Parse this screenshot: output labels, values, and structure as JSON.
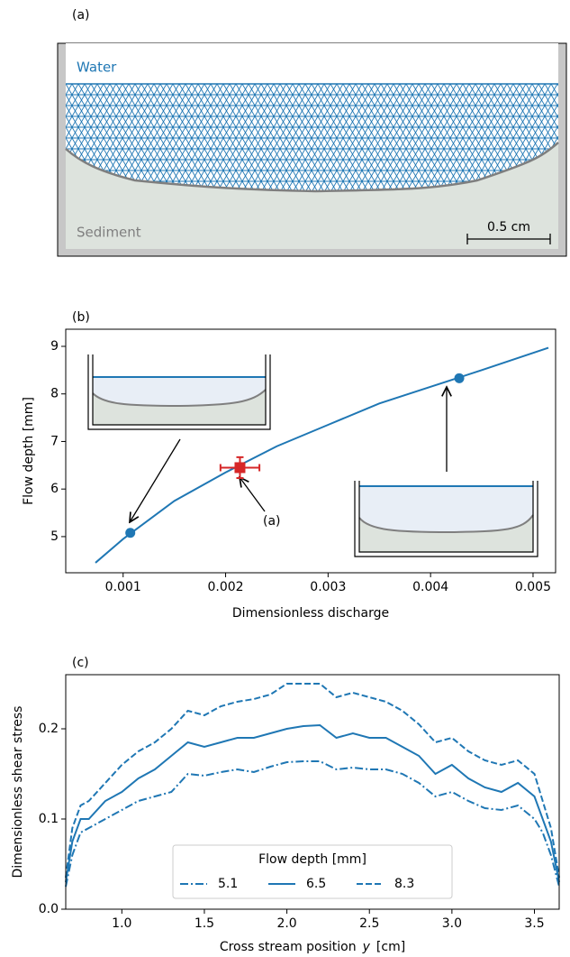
{
  "diagram": {
    "panel_label": "(a)",
    "water_label": "Water",
    "sediment_label": "Sediment",
    "scale_bar_label": "0.5 cm"
  },
  "chart_data": [
    {
      "type": "line",
      "panel_label": "(b)",
      "xlabel": "Dimensionless discharge",
      "ylabel": "Flow depth  [mm]",
      "xlim": [
        0.00044,
        0.00522
      ],
      "ylim": [
        4.24,
        9.36
      ],
      "xticks": [
        0.001,
        0.002,
        0.003,
        0.004,
        0.005
      ],
      "yticks": [
        5,
        6,
        7,
        8,
        9
      ],
      "curve": {
        "color": "#1f77b4",
        "x": [
          0.00073,
          0.001,
          0.0015,
          0.002,
          0.0025,
          0.003,
          0.0035,
          0.004,
          0.0045,
          0.00515
        ],
        "values": [
          4.45,
          4.95,
          5.75,
          6.35,
          6.9,
          7.35,
          7.8,
          8.15,
          8.5,
          8.97
        ]
      },
      "points": {
        "color": "#1f77b4",
        "x": [
          0.00107,
          0.00428
        ],
        "values": [
          5.08,
          8.33
        ]
      },
      "measurement": {
        "color": "#d62728",
        "x": 0.00214,
        "value": 6.45,
        "x_error": 0.00019,
        "error": 0.22
      },
      "annotation": "(a)"
    },
    {
      "type": "line",
      "panel_label": "(c)",
      "xlabel": "Cross stream position",
      "xlabel_symbol": "y",
      "xlabel_unit": "[cm]",
      "ylabel": "Dimensionless shear stress",
      "xlim": [
        0.66,
        3.65
      ],
      "ylim": [
        0,
        0.26
      ],
      "xticks": [
        {
          "value": 1.0,
          "label": "1.0"
        },
        {
          "value": 1.5,
          "label": "1.5"
        },
        {
          "value": 2.0,
          "label": "2.0"
        },
        {
          "value": 2.5,
          "label": "2.5"
        },
        {
          "value": 3.0,
          "label": "3.0"
        },
        {
          "value": 3.5,
          "label": "3.5"
        }
      ],
      "yticks": [
        {
          "value": 0.0,
          "label": "0.0"
        },
        {
          "value": 0.1,
          "label": "0.1"
        },
        {
          "value": 0.2,
          "label": "0.2"
        }
      ],
      "legend_title": "Flow depth  [mm]",
      "legend_position": "lower center",
      "x": [
        0.66,
        0.7,
        0.75,
        0.8,
        0.9,
        1.0,
        1.1,
        1.2,
        1.3,
        1.4,
        1.5,
        1.6,
        1.7,
        1.8,
        1.9,
        2.0,
        2.1,
        2.2,
        2.3,
        2.4,
        2.5,
        2.6,
        2.7,
        2.8,
        2.9,
        3.0,
        3.1,
        3.2,
        3.3,
        3.4,
        3.5,
        3.55,
        3.6,
        3.65
      ],
      "series": [
        {
          "name": "5.1",
          "color": "#1f77b4",
          "dash": "dashdot",
          "values": [
            0.025,
            0.06,
            0.085,
            0.09,
            0.1,
            0.11,
            0.12,
            0.125,
            0.13,
            0.15,
            0.148,
            0.152,
            0.155,
            0.152,
            0.158,
            0.163,
            0.164,
            0.164,
            0.155,
            0.157,
            0.155,
            0.155,
            0.15,
            0.14,
            0.125,
            0.13,
            0.12,
            0.112,
            0.11,
            0.115,
            0.1,
            0.085,
            0.06,
            0.025
          ]
        },
        {
          "name": "6.5",
          "color": "#1f77b4",
          "dash": "solid",
          "values": [
            0.03,
            0.075,
            0.1,
            0.1,
            0.12,
            0.13,
            0.145,
            0.155,
            0.17,
            0.185,
            0.18,
            0.185,
            0.19,
            0.19,
            0.195,
            0.2,
            0.203,
            0.204,
            0.19,
            0.195,
            0.19,
            0.19,
            0.18,
            0.17,
            0.15,
            0.16,
            0.145,
            0.135,
            0.13,
            0.14,
            0.125,
            0.1,
            0.075,
            0.03
          ]
        },
        {
          "name": "8.3",
          "color": "#1f77b4",
          "dash": "dashed",
          "values": [
            0.035,
            0.09,
            0.115,
            0.12,
            0.14,
            0.16,
            0.175,
            0.185,
            0.2,
            0.22,
            0.215,
            0.225,
            0.23,
            0.233,
            0.238,
            0.25,
            0.25,
            0.25,
            0.235,
            0.24,
            0.235,
            0.23,
            0.22,
            0.205,
            0.185,
            0.19,
            0.175,
            0.165,
            0.16,
            0.165,
            0.15,
            0.12,
            0.09,
            0.035
          ]
        }
      ]
    }
  ]
}
